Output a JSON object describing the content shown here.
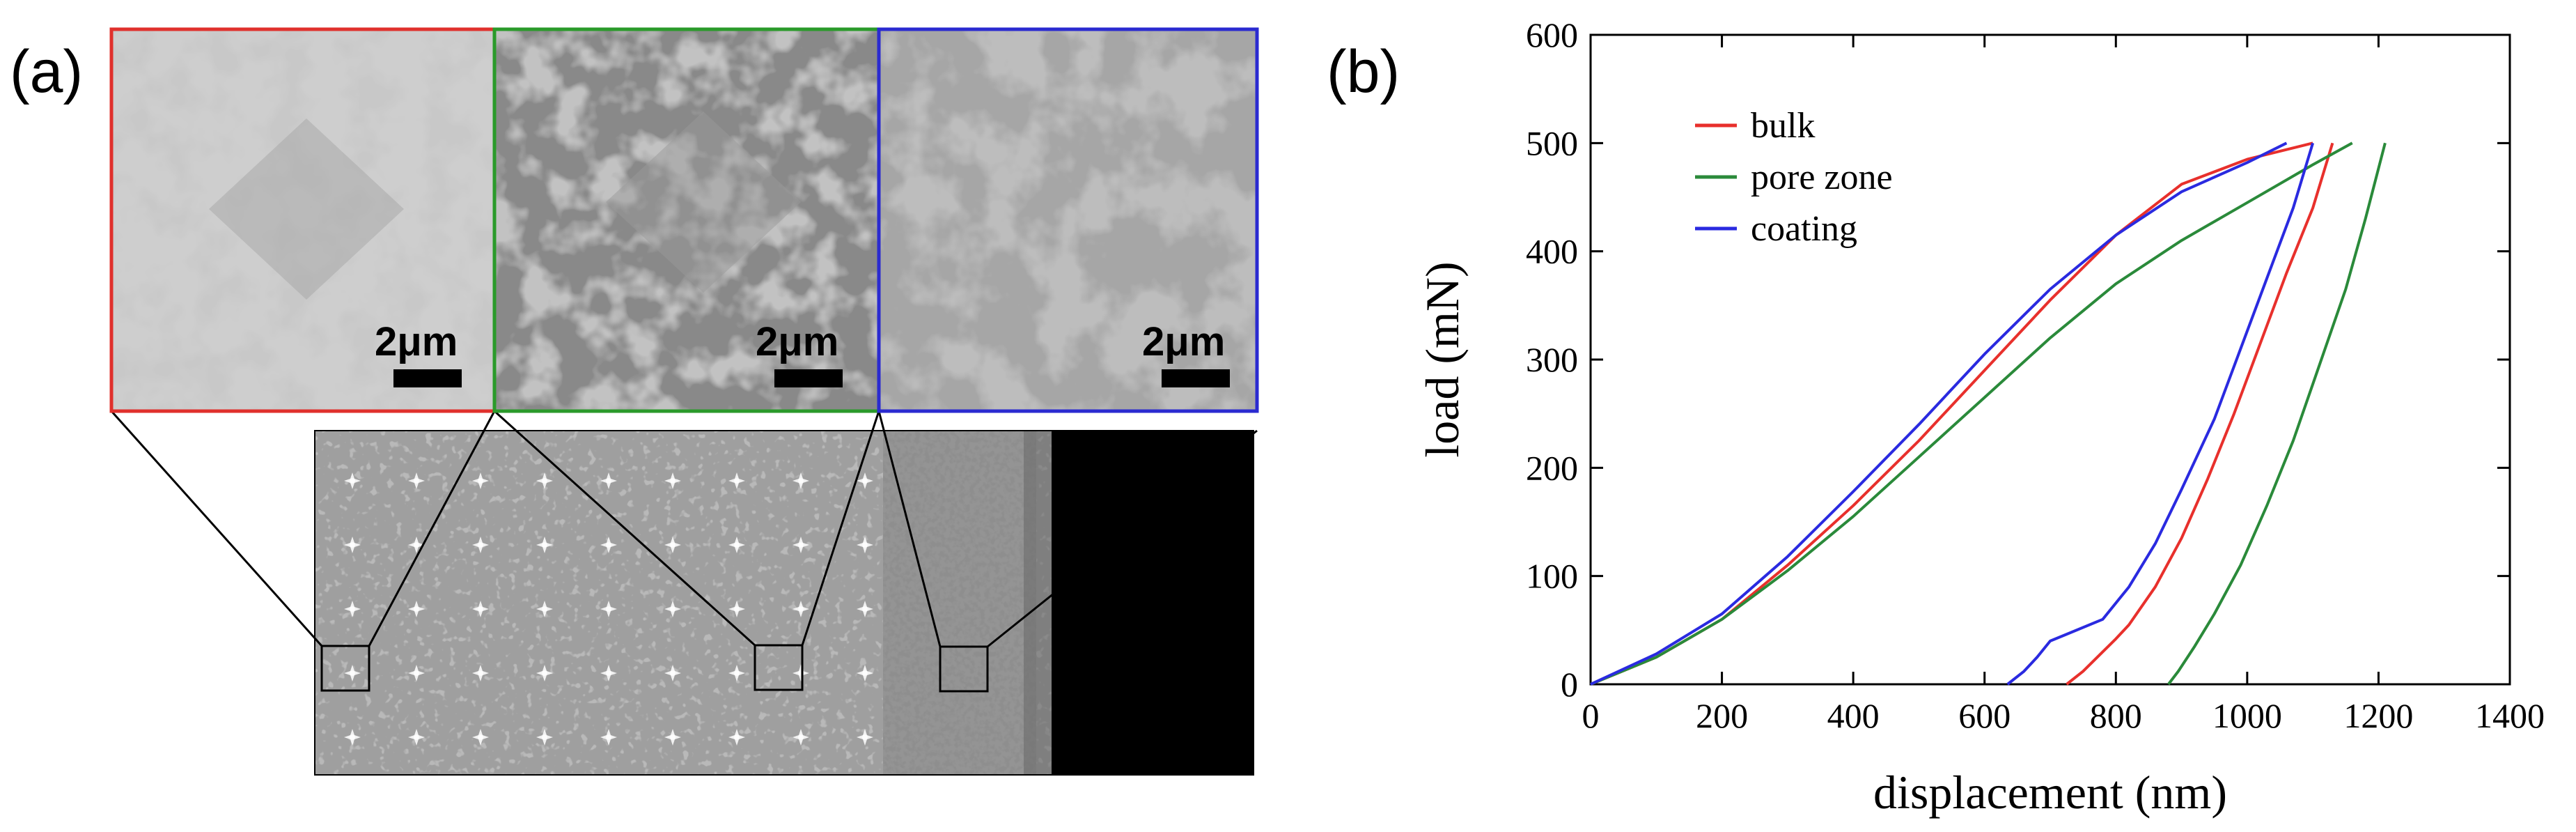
{
  "panels": {
    "a_label": "(a)",
    "b_label": "(b)",
    "scale_bars": [
      "2μm",
      "2μm",
      "2μm"
    ],
    "inset_border_colors": [
      "#e0302c",
      "#2a9a2a",
      "#2a2ad0"
    ]
  },
  "chart_data": {
    "type": "line",
    "title": "",
    "xlabel": "displacement (nm)",
    "ylabel": "load (mN)",
    "xlim": [
      0,
      1400
    ],
    "ylim": [
      0,
      600
    ],
    "xticks": [
      0,
      200,
      400,
      600,
      800,
      1000,
      1200,
      1400
    ],
    "yticks": [
      0,
      100,
      200,
      300,
      400,
      500,
      600
    ],
    "legend_position": "top-left",
    "series": [
      {
        "name": "bulk",
        "color": "#e8302c",
        "loading": [
          [
            0,
            0
          ],
          [
            100,
            25
          ],
          [
            200,
            60
          ],
          [
            300,
            110
          ],
          [
            400,
            165
          ],
          [
            500,
            225
          ],
          [
            600,
            290
          ],
          [
            700,
            355
          ],
          [
            800,
            415
          ],
          [
            900,
            462
          ],
          [
            1000,
            485
          ],
          [
            1100,
            500
          ]
        ],
        "unloading": [
          [
            1130,
            500
          ],
          [
            1100,
            440
          ],
          [
            1060,
            380
          ],
          [
            1020,
            315
          ],
          [
            980,
            250
          ],
          [
            940,
            190
          ],
          [
            900,
            135
          ],
          [
            860,
            90
          ],
          [
            820,
            55
          ],
          [
            800,
            42
          ],
          [
            780,
            30
          ],
          [
            750,
            12
          ],
          [
            725,
            0
          ]
        ]
      },
      {
        "name": "pore zone",
        "color": "#2a8a3a",
        "loading": [
          [
            0,
            0
          ],
          [
            100,
            25
          ],
          [
            200,
            60
          ],
          [
            300,
            105
          ],
          [
            400,
            155
          ],
          [
            500,
            210
          ],
          [
            600,
            265
          ],
          [
            700,
            320
          ],
          [
            800,
            370
          ],
          [
            900,
            410
          ],
          [
            1000,
            445
          ],
          [
            1100,
            480
          ],
          [
            1160,
            500
          ]
        ],
        "unloading": [
          [
            1210,
            500
          ],
          [
            1180,
            430
          ],
          [
            1150,
            365
          ],
          [
            1110,
            295
          ],
          [
            1070,
            225
          ],
          [
            1030,
            165
          ],
          [
            990,
            110
          ],
          [
            950,
            65
          ],
          [
            920,
            35
          ],
          [
            895,
            12
          ],
          [
            880,
            0
          ]
        ]
      },
      {
        "name": "coating",
        "color": "#2a2ae0",
        "loading": [
          [
            0,
            0
          ],
          [
            100,
            28
          ],
          [
            200,
            65
          ],
          [
            300,
            118
          ],
          [
            400,
            178
          ],
          [
            500,
            240
          ],
          [
            600,
            305
          ],
          [
            700,
            365
          ],
          [
            800,
            415
          ],
          [
            900,
            455
          ],
          [
            1000,
            482
          ],
          [
            1060,
            500
          ]
        ],
        "unloading": [
          [
            1100,
            500
          ],
          [
            1070,
            440
          ],
          [
            1030,
            375
          ],
          [
            990,
            310
          ],
          [
            950,
            245
          ],
          [
            900,
            180
          ],
          [
            860,
            130
          ],
          [
            820,
            90
          ],
          [
            780,
            60
          ],
          [
            720,
            45
          ],
          [
            700,
            40
          ],
          [
            680,
            25
          ],
          [
            660,
            12
          ],
          [
            635,
            0
          ]
        ]
      }
    ]
  }
}
